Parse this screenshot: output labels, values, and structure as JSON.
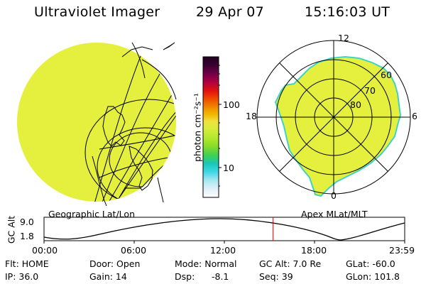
{
  "header": {
    "title": "Ultraviolet Imager",
    "date": "29 Apr 07",
    "time": "15:16:03 UT"
  },
  "colors": {
    "aurora_fill": "#e5ef3d",
    "aurora_edge": "#3fd3c8",
    "grid_line": "#000000",
    "time_marker": "#ff0000"
  },
  "colorbar": {
    "unit_label": "photon cm⁻²s⁻¹",
    "ticks": [
      "100",
      "10"
    ],
    "scale": "log",
    "stops": [
      "#200020",
      "#3a0030",
      "#70004a",
      "#b00040",
      "#e01010",
      "#f04a00",
      "#f08a00",
      "#f0b800",
      "#f0e040",
      "#d8ec3c",
      "#b8e830",
      "#8ede28",
      "#40d050",
      "#18c8b8",
      "#40d8e8",
      "#a8e8f0",
      "#e0f0f8",
      "#ffffff"
    ]
  },
  "geo_panel": {
    "label": "Geographic Lat/Lon"
  },
  "polar_panel": {
    "label": "Apex MLat/MLT",
    "mlt_labels": {
      "top": "12",
      "left": "18",
      "right": "6",
      "bottom": "0"
    },
    "lat_labels": [
      "60",
      "70",
      "80"
    ]
  },
  "altitude_plot": {
    "ylabel": "GC Alt",
    "yticks": [
      "9.0",
      "1.8"
    ],
    "xticks": [
      "00:00",
      "06:00",
      "12:00",
      "18:00",
      "23:59"
    ],
    "current_time_fraction": 0.635
  },
  "info": {
    "flt": "Flt: HOME",
    "door": "Door: Open",
    "mode": "Mode: Normal",
    "gc_alt": "GC Alt: 7.0 Re",
    "glat": "GLat: -60.0",
    "ip": "IP: 36.0",
    "gain": "Gain: 14",
    "dsp_label": "Dsp:",
    "dsp_value": "-8.1",
    "seq": "Seq: 39",
    "glon": "GLon: 101.8"
  }
}
